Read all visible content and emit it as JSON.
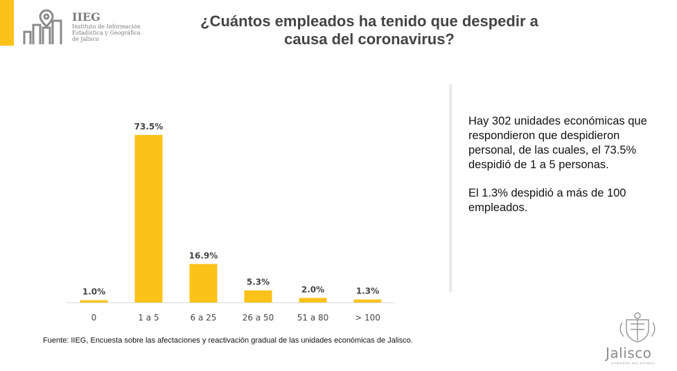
{
  "header": {
    "logo": {
      "short": "IIEG",
      "line1": "Instituto de Información",
      "line2": "Estadística y Geográfica",
      "line3": "de Jalisco"
    },
    "title_line1": "¿Cuántos empleados ha tenido que despedir a",
    "title_line2": "causa del coronavirus?"
  },
  "side": {
    "paragraph1": "Hay 302 unidades económicas que respondieron que despidieron personal, de las cuales, el 73.5% despidió de 1 a 5 personas.",
    "paragraph2": "El 1.3% despidió a más de 100 empleados."
  },
  "footer": {
    "source": "Fuente: IIEG, Encuesta sobre las afectaciones y reactivación gradual de las unidades económicas de Jalisco.",
    "brand": "Jalisco",
    "brand_sub": "GOBIERNO DEL ESTADO"
  },
  "colors": {
    "accent": "#FBC21A",
    "text": "#444444"
  },
  "chart_data": {
    "type": "bar",
    "categories": [
      "0",
      "1 a 5",
      "6 a 25",
      "26 a 50",
      "51 a 80",
      "> 100"
    ],
    "values": [
      1.0,
      73.5,
      16.9,
      5.3,
      2.0,
      1.3
    ],
    "data_labels": [
      "1.0%",
      "73.5%",
      "16.9%",
      "5.3%",
      "2.0%",
      "1.3%"
    ],
    "title": "",
    "xlabel": "",
    "ylabel": "",
    "ylim": [
      0,
      75
    ],
    "grid": false,
    "bar_color": "#FBC21A"
  }
}
